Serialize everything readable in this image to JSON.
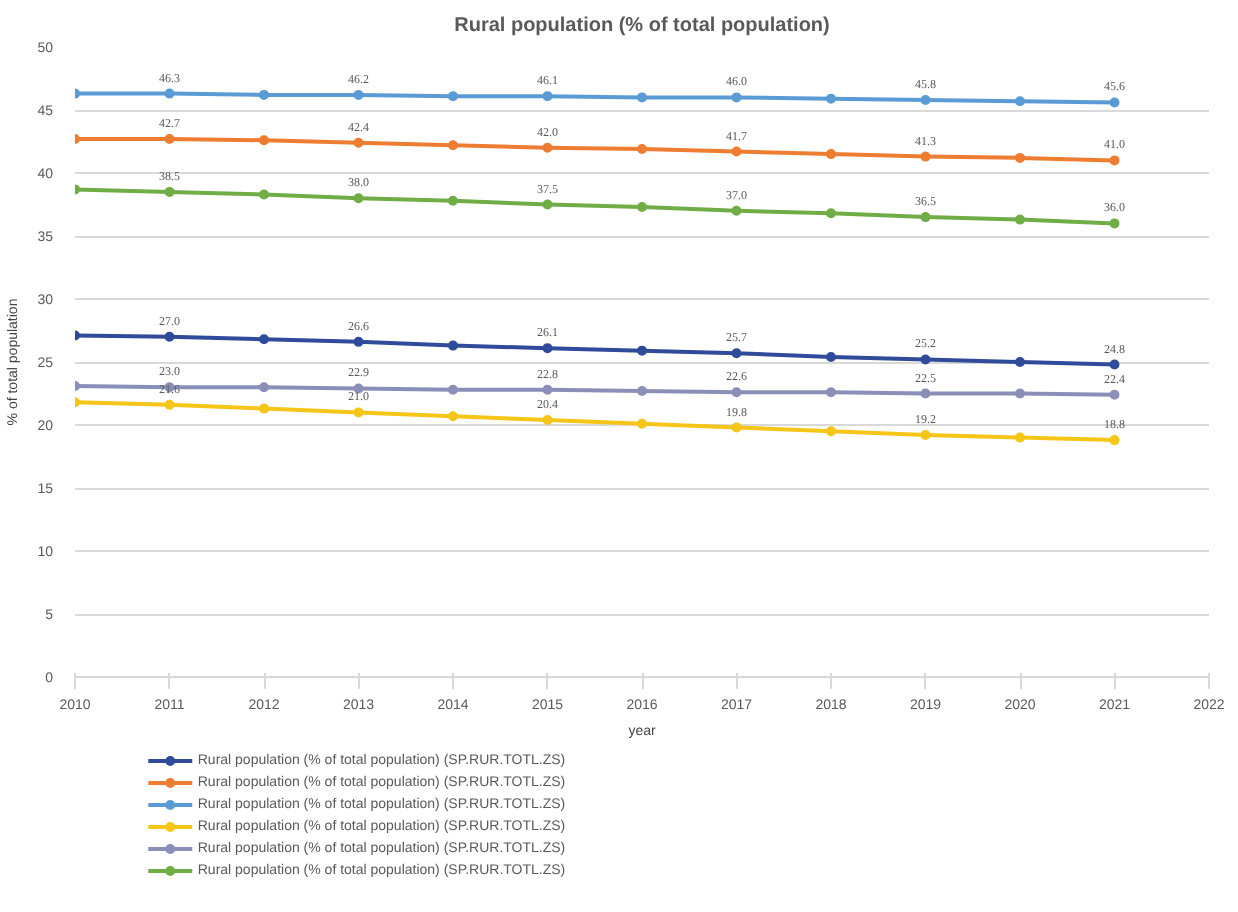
{
  "chart_data": {
    "type": "line",
    "title": "Rural population (% of total population)",
    "xlabel": "year",
    "ylabel": "% of total population",
    "x": [
      2010,
      2011,
      2012,
      2013,
      2014,
      2015,
      2016,
      2017,
      2018,
      2019,
      2020,
      2021
    ],
    "xlim": [
      2010,
      2022
    ],
    "xticks": [
      2010,
      2011,
      2012,
      2013,
      2014,
      2015,
      2016,
      2017,
      2018,
      2019,
      2020,
      2021,
      2022
    ],
    "ylim": [
      0,
      50
    ],
    "yticks": [
      0,
      5,
      10,
      15,
      20,
      25,
      30,
      35,
      40,
      45,
      50
    ],
    "grid": "y",
    "legend": "bottom",
    "marker": "circle",
    "line_style": "solid",
    "series": [
      {
        "name": "Rural population (% of total population) (SP.RUR.TOTL.ZS)",
        "color": "#2f4b9a",
        "values": [
          27.1,
          27.0,
          26.8,
          26.6,
          26.3,
          26.1,
          25.9,
          25.7,
          25.4,
          25.2,
          25.0,
          24.8
        ],
        "value_labels": [
          null,
          "27.0",
          null,
          "26.6",
          null,
          "26.1",
          null,
          "25.7",
          null,
          "25.2",
          null,
          "24.8"
        ]
      },
      {
        "name": "Rural population (% of total population) (SP.RUR.TOTL.ZS)",
        "color": "#ed7d31",
        "values": [
          42.7,
          42.7,
          42.6,
          42.4,
          42.2,
          42.0,
          41.9,
          41.7,
          41.5,
          41.3,
          41.2,
          41.0
        ],
        "value_labels": [
          null,
          "42.7",
          null,
          "42.4",
          null,
          "42.0",
          null,
          "41.7",
          null,
          "41.3",
          null,
          "41.0"
        ]
      },
      {
        "name": "Rural population (% of total population) (SP.RUR.TOTL.ZS)",
        "color": "#5b9bd5",
        "values": [
          46.3,
          46.3,
          46.2,
          46.2,
          46.1,
          46.1,
          46.0,
          46.0,
          45.9,
          45.8,
          45.7,
          45.6
        ],
        "value_labels": [
          null,
          "46.3",
          null,
          "46.2",
          null,
          "46.1",
          null,
          "46.0",
          null,
          "45.8",
          null,
          "45.6"
        ]
      },
      {
        "name": "Rural population (% of total population) (SP.RUR.TOTL.ZS)",
        "color": "#f5c518",
        "values": [
          21.8,
          21.6,
          21.3,
          21.0,
          20.7,
          20.4,
          20.1,
          19.8,
          19.5,
          19.2,
          19.0,
          18.8
        ],
        "value_labels": [
          null,
          "21.6",
          null,
          "21.0",
          null,
          "20.4",
          null,
          "19.8",
          null,
          "19.2",
          null,
          "18.8"
        ]
      },
      {
        "name": "Rural population (% of total population) (SP.RUR.TOTL.ZS)",
        "color": "#8a8fb8",
        "values": [
          23.1,
          23.0,
          23.0,
          22.9,
          22.8,
          22.8,
          22.7,
          22.6,
          22.6,
          22.5,
          22.5,
          22.4
        ],
        "value_labels": [
          null,
          "23.0",
          null,
          "22.9",
          null,
          "22.8",
          null,
          "22.6",
          null,
          "22.5",
          null,
          "22.4"
        ]
      },
      {
        "name": "Rural population (% of total population) (SP.RUR.TOTL.ZS)",
        "color": "#70ad47",
        "values": [
          38.7,
          38.5,
          38.3,
          38.0,
          37.8,
          37.5,
          37.3,
          37.0,
          36.8,
          36.5,
          36.3,
          36.0
        ],
        "value_labels": [
          null,
          "38.5",
          null,
          "38.0",
          null,
          "37.5",
          null,
          "37.0",
          null,
          "36.5",
          null,
          "36.0"
        ]
      }
    ]
  }
}
